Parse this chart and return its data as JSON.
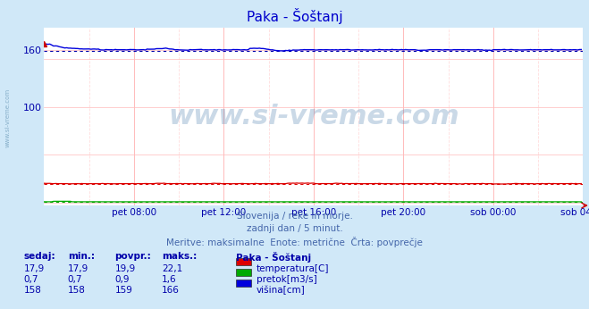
{
  "title": "Paka - Šoštanj",
  "bg_color": "#d0e8f8",
  "plot_bg_color": "#ffffff",
  "grid_color_v_major": "#ffbbbb",
  "grid_color_v_minor": "#ffdddd",
  "grid_color_h": "#ffbbbb",
  "n_points": 288,
  "x_tick_labels": [
    "pet 08:00",
    "pet 12:00",
    "pet 16:00",
    "pet 20:00",
    "sob 00:00",
    "sob 04:00"
  ],
  "x_tick_positions": [
    48,
    96,
    144,
    192,
    240,
    288
  ],
  "ylim": [
    -3,
    183
  ],
  "temp_color": "#dd0000",
  "temp_avg_color": "#dd0000",
  "pretok_color": "#00aa00",
  "visina_color": "#0000dd",
  "visina_avg_color": "#0000aa",
  "temp_avg": 19.9,
  "pretok_avg": 0.9,
  "visina_avg": 159,
  "subtitle1": "Slovenija / reke in morje.",
  "subtitle2": "zadnji dan / 5 minut.",
  "subtitle3": "Meritve: maksimalne  Enote: metrične  Črta: povprečje",
  "table_headers": [
    "sedaj:",
    "min.:",
    "povpr.:",
    "maks.:"
  ],
  "legend_title": "Paka - Šoštanj",
  "legend_items": [
    "temperatura[C]",
    "pretok[m3/s]",
    "višina[cm]"
  ],
  "legend_colors": [
    "#dd0000",
    "#00aa00",
    "#0000dd"
  ],
  "table_data": [
    [
      "17,9",
      "17,9",
      "19,9",
      "22,1"
    ],
    [
      "0,7",
      "0,7",
      "0,9",
      "1,6"
    ],
    [
      "158",
      "158",
      "159",
      "166"
    ]
  ],
  "watermark": "www.si-vreme.com",
  "left_label": "www.si-vreme.com"
}
